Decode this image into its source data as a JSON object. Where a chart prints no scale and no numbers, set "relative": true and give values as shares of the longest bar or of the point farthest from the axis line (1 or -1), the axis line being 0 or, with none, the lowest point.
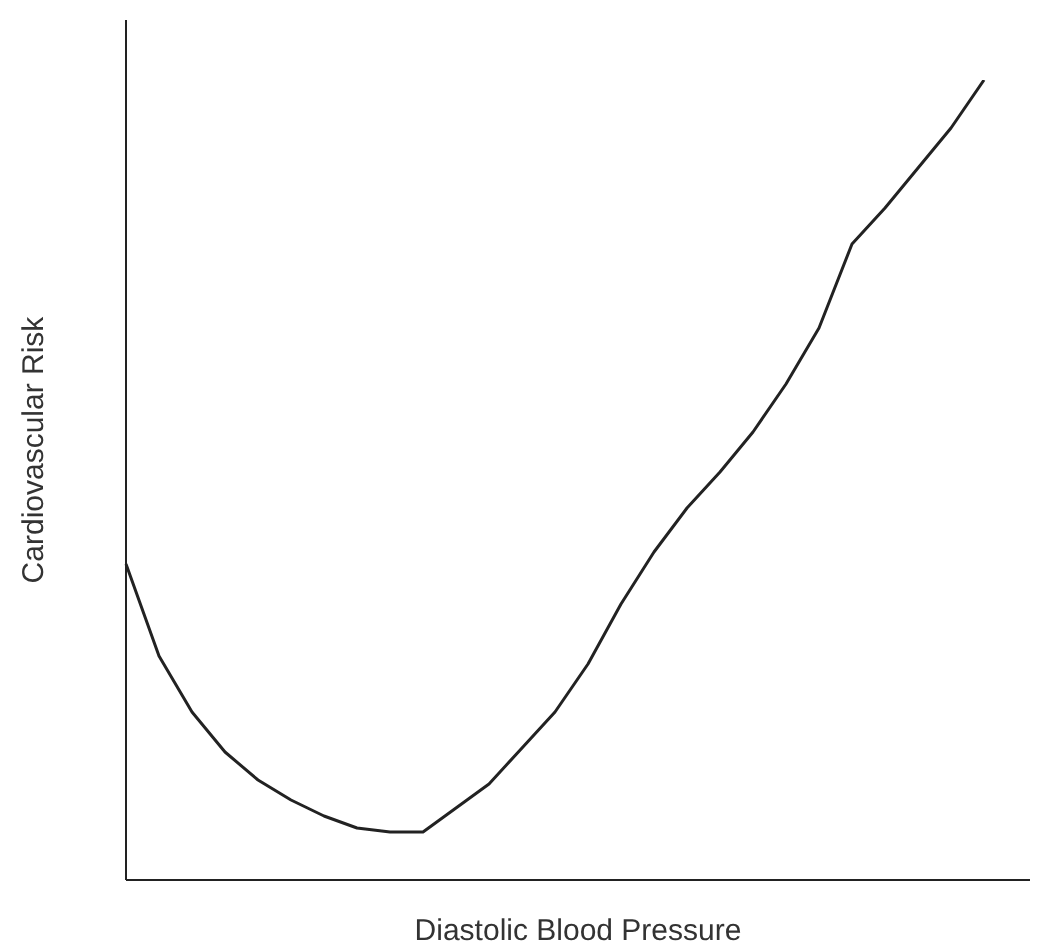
{
  "chart_data": {
    "type": "line",
    "xlabel": "Diastolic Blood Pressure",
    "ylabel": "Cardiovascular Risk",
    "relative": true,
    "color": "#222222",
    "marker": "none",
    "line_style": "solid",
    "categories": [
      null,
      null,
      null,
      null,
      null,
      null,
      null,
      null,
      null,
      null,
      null,
      null,
      null,
      null,
      null,
      null,
      null,
      null,
      null,
      null,
      null,
      null,
      null,
      null,
      null,
      null,
      null
    ],
    "values": [
      0.395,
      0.28,
      0.21,
      0.16,
      0.125,
      0.1,
      0.08,
      0.065,
      0.06,
      0.06,
      0.09,
      0.12,
      0.165,
      0.21,
      0.27,
      0.345,
      0.41,
      0.465,
      0.51,
      0.56,
      0.62,
      0.69,
      0.795,
      0.84,
      0.89,
      0.94,
      1
    ]
  }
}
